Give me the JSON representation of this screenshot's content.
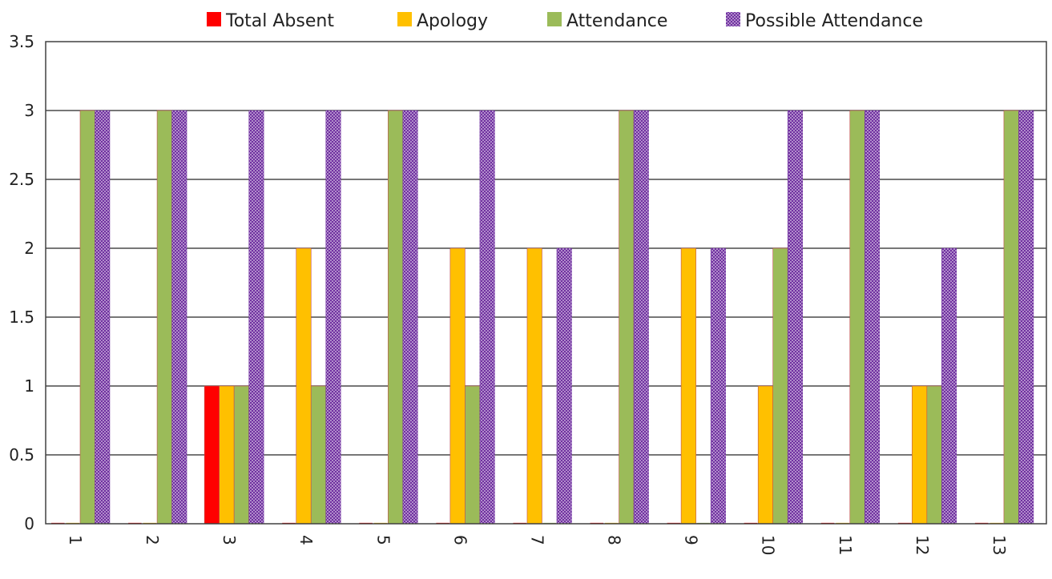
{
  "chart_data": {
    "type": "bar",
    "title": "",
    "xlabel": "",
    "ylabel": "",
    "categories": [
      "1",
      "2",
      "3",
      "4",
      "5",
      "6",
      "7",
      "8",
      "9",
      "10",
      "11",
      "12",
      "13"
    ],
    "series": [
      {
        "name": "Total Absent",
        "color": "#ff0000",
        "pattern": "solid",
        "values": [
          0,
          0,
          1,
          0,
          0,
          0,
          0,
          0,
          0,
          0,
          0,
          0,
          0
        ]
      },
      {
        "name": "Apology",
        "color": "#ffc000",
        "pattern": "solid",
        "values": [
          0,
          0,
          1,
          2,
          0,
          2,
          2,
          0,
          2,
          1,
          0,
          1,
          0
        ]
      },
      {
        "name": "Attendance",
        "color": "#9bbb59",
        "pattern": "solid",
        "values": [
          3,
          3,
          1,
          1,
          3,
          1,
          0,
          3,
          0,
          2,
          3,
          1,
          3
        ]
      },
      {
        "name": "Possible Attendance",
        "color": "#7030a0",
        "pattern": "dotted",
        "values": [
          3,
          3,
          3,
          3,
          3,
          3,
          2,
          3,
          2,
          3,
          3,
          2,
          3
        ]
      }
    ],
    "ylim": [
      0,
      3.5
    ],
    "yticks": [
      "0",
      "0.5",
      "1",
      "1.5",
      "2",
      "2.5",
      "3",
      "3.5"
    ],
    "grid": "horizontal",
    "legend_position": "top",
    "x_tick_rotation": "vertical"
  }
}
